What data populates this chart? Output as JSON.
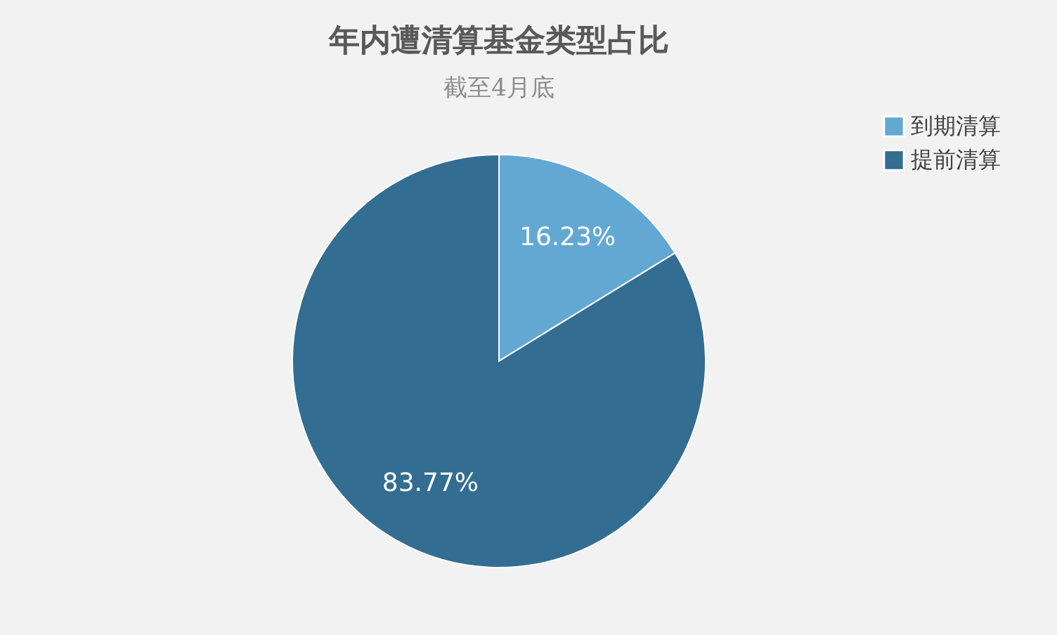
{
  "chart_data": {
    "type": "pie",
    "title": "年内遭清算基金类型占比",
    "subtitle": "截至4月底",
    "categories": [
      "到期清算",
      "提前清算"
    ],
    "values": [
      16.23,
      83.77
    ],
    "value_labels": [
      "16.23%",
      "83.77%"
    ],
    "colors": [
      "#62a8d2",
      "#336d92"
    ],
    "legend": "right"
  }
}
